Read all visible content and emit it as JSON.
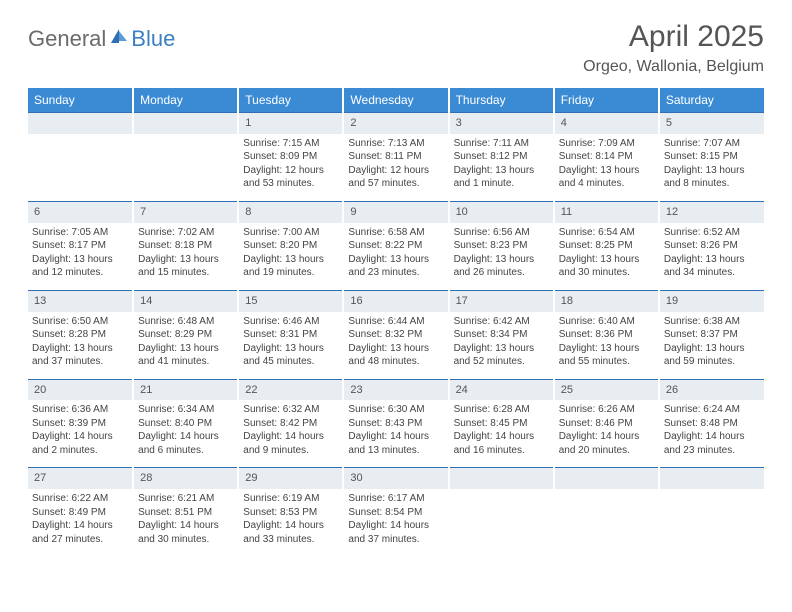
{
  "brand": {
    "part1": "General",
    "part2": "Blue"
  },
  "title": "April 2025",
  "location": "Orgeo, Wallonia, Belgium",
  "colors": {
    "header_bg": "#3b8bd4",
    "header_text": "#ffffff",
    "daynum_bg": "#e8edf1",
    "border_top": "#2e6fb5",
    "text": "#444444"
  },
  "day_names": [
    "Sunday",
    "Monday",
    "Tuesday",
    "Wednesday",
    "Thursday",
    "Friday",
    "Saturday"
  ],
  "weeks": [
    [
      {
        "n": "",
        "sr": "",
        "ss": "",
        "dl": ""
      },
      {
        "n": "",
        "sr": "",
        "ss": "",
        "dl": ""
      },
      {
        "n": "1",
        "sr": "Sunrise: 7:15 AM",
        "ss": "Sunset: 8:09 PM",
        "dl": "Daylight: 12 hours and 53 minutes."
      },
      {
        "n": "2",
        "sr": "Sunrise: 7:13 AM",
        "ss": "Sunset: 8:11 PM",
        "dl": "Daylight: 12 hours and 57 minutes."
      },
      {
        "n": "3",
        "sr": "Sunrise: 7:11 AM",
        "ss": "Sunset: 8:12 PM",
        "dl": "Daylight: 13 hours and 1 minute."
      },
      {
        "n": "4",
        "sr": "Sunrise: 7:09 AM",
        "ss": "Sunset: 8:14 PM",
        "dl": "Daylight: 13 hours and 4 minutes."
      },
      {
        "n": "5",
        "sr": "Sunrise: 7:07 AM",
        "ss": "Sunset: 8:15 PM",
        "dl": "Daylight: 13 hours and 8 minutes."
      }
    ],
    [
      {
        "n": "6",
        "sr": "Sunrise: 7:05 AM",
        "ss": "Sunset: 8:17 PM",
        "dl": "Daylight: 13 hours and 12 minutes."
      },
      {
        "n": "7",
        "sr": "Sunrise: 7:02 AM",
        "ss": "Sunset: 8:18 PM",
        "dl": "Daylight: 13 hours and 15 minutes."
      },
      {
        "n": "8",
        "sr": "Sunrise: 7:00 AM",
        "ss": "Sunset: 8:20 PM",
        "dl": "Daylight: 13 hours and 19 minutes."
      },
      {
        "n": "9",
        "sr": "Sunrise: 6:58 AM",
        "ss": "Sunset: 8:22 PM",
        "dl": "Daylight: 13 hours and 23 minutes."
      },
      {
        "n": "10",
        "sr": "Sunrise: 6:56 AM",
        "ss": "Sunset: 8:23 PM",
        "dl": "Daylight: 13 hours and 26 minutes."
      },
      {
        "n": "11",
        "sr": "Sunrise: 6:54 AM",
        "ss": "Sunset: 8:25 PM",
        "dl": "Daylight: 13 hours and 30 minutes."
      },
      {
        "n": "12",
        "sr": "Sunrise: 6:52 AM",
        "ss": "Sunset: 8:26 PM",
        "dl": "Daylight: 13 hours and 34 minutes."
      }
    ],
    [
      {
        "n": "13",
        "sr": "Sunrise: 6:50 AM",
        "ss": "Sunset: 8:28 PM",
        "dl": "Daylight: 13 hours and 37 minutes."
      },
      {
        "n": "14",
        "sr": "Sunrise: 6:48 AM",
        "ss": "Sunset: 8:29 PM",
        "dl": "Daylight: 13 hours and 41 minutes."
      },
      {
        "n": "15",
        "sr": "Sunrise: 6:46 AM",
        "ss": "Sunset: 8:31 PM",
        "dl": "Daylight: 13 hours and 45 minutes."
      },
      {
        "n": "16",
        "sr": "Sunrise: 6:44 AM",
        "ss": "Sunset: 8:32 PM",
        "dl": "Daylight: 13 hours and 48 minutes."
      },
      {
        "n": "17",
        "sr": "Sunrise: 6:42 AM",
        "ss": "Sunset: 8:34 PM",
        "dl": "Daylight: 13 hours and 52 minutes."
      },
      {
        "n": "18",
        "sr": "Sunrise: 6:40 AM",
        "ss": "Sunset: 8:36 PM",
        "dl": "Daylight: 13 hours and 55 minutes."
      },
      {
        "n": "19",
        "sr": "Sunrise: 6:38 AM",
        "ss": "Sunset: 8:37 PM",
        "dl": "Daylight: 13 hours and 59 minutes."
      }
    ],
    [
      {
        "n": "20",
        "sr": "Sunrise: 6:36 AM",
        "ss": "Sunset: 8:39 PM",
        "dl": "Daylight: 14 hours and 2 minutes."
      },
      {
        "n": "21",
        "sr": "Sunrise: 6:34 AM",
        "ss": "Sunset: 8:40 PM",
        "dl": "Daylight: 14 hours and 6 minutes."
      },
      {
        "n": "22",
        "sr": "Sunrise: 6:32 AM",
        "ss": "Sunset: 8:42 PM",
        "dl": "Daylight: 14 hours and 9 minutes."
      },
      {
        "n": "23",
        "sr": "Sunrise: 6:30 AM",
        "ss": "Sunset: 8:43 PM",
        "dl": "Daylight: 14 hours and 13 minutes."
      },
      {
        "n": "24",
        "sr": "Sunrise: 6:28 AM",
        "ss": "Sunset: 8:45 PM",
        "dl": "Daylight: 14 hours and 16 minutes."
      },
      {
        "n": "25",
        "sr": "Sunrise: 6:26 AM",
        "ss": "Sunset: 8:46 PM",
        "dl": "Daylight: 14 hours and 20 minutes."
      },
      {
        "n": "26",
        "sr": "Sunrise: 6:24 AM",
        "ss": "Sunset: 8:48 PM",
        "dl": "Daylight: 14 hours and 23 minutes."
      }
    ],
    [
      {
        "n": "27",
        "sr": "Sunrise: 6:22 AM",
        "ss": "Sunset: 8:49 PM",
        "dl": "Daylight: 14 hours and 27 minutes."
      },
      {
        "n": "28",
        "sr": "Sunrise: 6:21 AM",
        "ss": "Sunset: 8:51 PM",
        "dl": "Daylight: 14 hours and 30 minutes."
      },
      {
        "n": "29",
        "sr": "Sunrise: 6:19 AM",
        "ss": "Sunset: 8:53 PM",
        "dl": "Daylight: 14 hours and 33 minutes."
      },
      {
        "n": "30",
        "sr": "Sunrise: 6:17 AM",
        "ss": "Sunset: 8:54 PM",
        "dl": "Daylight: 14 hours and 37 minutes."
      },
      {
        "n": "",
        "sr": "",
        "ss": "",
        "dl": ""
      },
      {
        "n": "",
        "sr": "",
        "ss": "",
        "dl": ""
      },
      {
        "n": "",
        "sr": "",
        "ss": "",
        "dl": ""
      }
    ]
  ]
}
